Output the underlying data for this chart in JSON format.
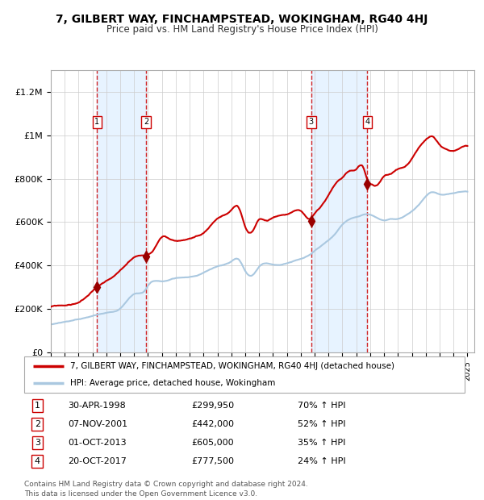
{
  "title": "7, GILBERT WAY, FINCHAMPSTEAD, WOKINGHAM, RG40 4HJ",
  "subtitle": "Price paid vs. HM Land Registry's House Price Index (HPI)",
  "xlim": [
    1995.0,
    2025.5
  ],
  "ylim": [
    0,
    1300000
  ],
  "ytick_labels": [
    "£0",
    "£200K",
    "£400K",
    "£600K",
    "£800K",
    "£1M",
    "£1.2M"
  ],
  "sale_color": "#cc0000",
  "hpi_color": "#aac8e0",
  "marker_color": "#990000",
  "vline_color": "#cc0000",
  "shade_color": "#ddeeff",
  "transactions": [
    {
      "num": 1,
      "date_str": "30-APR-1998",
      "price": 299950,
      "hpi_pct": "70% ↑ HPI",
      "year": 1998.33
    },
    {
      "num": 2,
      "date_str": "07-NOV-2001",
      "price": 442000,
      "hpi_pct": "52% ↑ HPI",
      "year": 2001.85
    },
    {
      "num": 3,
      "date_str": "01-OCT-2013",
      "price": 605000,
      "hpi_pct": "35% ↑ HPI",
      "year": 2013.75
    },
    {
      "num": 4,
      "date_str": "20-OCT-2017",
      "price": 777500,
      "hpi_pct": "24% ↑ HPI",
      "year": 2017.8
    }
  ],
  "key_points_prop": [
    [
      1995.0,
      210000
    ],
    [
      1996.5,
      220000
    ],
    [
      1997.5,
      250000
    ],
    [
      1998.33,
      299950
    ],
    [
      1999.5,
      340000
    ],
    [
      2000.5,
      400000
    ],
    [
      2001.0,
      430000
    ],
    [
      2001.85,
      442000
    ],
    [
      2002.5,
      480000
    ],
    [
      2003.0,
      530000
    ],
    [
      2003.5,
      520000
    ],
    [
      2004.0,
      510000
    ],
    [
      2005.0,
      520000
    ],
    [
      2006.0,
      540000
    ],
    [
      2007.0,
      610000
    ],
    [
      2008.0,
      645000
    ],
    [
      2008.5,
      660000
    ],
    [
      2009.0,
      570000
    ],
    [
      2009.5,
      545000
    ],
    [
      2010.0,
      600000
    ],
    [
      2010.5,
      595000
    ],
    [
      2011.0,
      610000
    ],
    [
      2011.5,
      620000
    ],
    [
      2012.0,
      625000
    ],
    [
      2013.0,
      640000
    ],
    [
      2013.75,
      605000
    ],
    [
      2014.0,
      625000
    ],
    [
      2014.5,
      660000
    ],
    [
      2015.0,
      710000
    ],
    [
      2015.5,
      760000
    ],
    [
      2016.0,
      790000
    ],
    [
      2016.5,
      820000
    ],
    [
      2017.0,
      830000
    ],
    [
      2017.5,
      840000
    ],
    [
      2017.8,
      777500
    ],
    [
      2018.0,
      760000
    ],
    [
      2018.5,
      750000
    ],
    [
      2019.0,
      790000
    ],
    [
      2019.5,
      800000
    ],
    [
      2020.0,
      820000
    ],
    [
      2020.5,
      830000
    ],
    [
      2021.0,
      870000
    ],
    [
      2021.5,
      920000
    ],
    [
      2022.0,
      960000
    ],
    [
      2022.5,
      970000
    ],
    [
      2023.0,
      930000
    ],
    [
      2023.5,
      910000
    ],
    [
      2024.0,
      900000
    ],
    [
      2024.5,
      910000
    ],
    [
      2025.0,
      920000
    ]
  ],
  "key_points_hpi": [
    [
      1995.0,
      130000
    ],
    [
      1996.0,
      140000
    ],
    [
      1997.0,
      153000
    ],
    [
      1998.0,
      168000
    ],
    [
      1998.33,
      175000
    ],
    [
      1999.0,
      185000
    ],
    [
      2000.0,
      205000
    ],
    [
      2001.0,
      270000
    ],
    [
      2001.85,
      290000
    ],
    [
      2002.0,
      305000
    ],
    [
      2003.0,
      325000
    ],
    [
      2004.0,
      340000
    ],
    [
      2005.0,
      345000
    ],
    [
      2006.0,
      365000
    ],
    [
      2007.0,
      395000
    ],
    [
      2008.0,
      415000
    ],
    [
      2008.5,
      425000
    ],
    [
      2009.0,
      370000
    ],
    [
      2009.5,
      350000
    ],
    [
      2010.0,
      390000
    ],
    [
      2011.0,
      400000
    ],
    [
      2012.0,
      405000
    ],
    [
      2013.0,
      425000
    ],
    [
      2013.75,
      447000
    ],
    [
      2014.0,
      460000
    ],
    [
      2015.0,
      510000
    ],
    [
      2015.5,
      540000
    ],
    [
      2016.0,
      580000
    ],
    [
      2016.5,
      605000
    ],
    [
      2017.0,
      615000
    ],
    [
      2017.8,
      628000
    ],
    [
      2018.0,
      625000
    ],
    [
      2018.5,
      610000
    ],
    [
      2019.0,
      600000
    ],
    [
      2019.5,
      605000
    ],
    [
      2020.0,
      605000
    ],
    [
      2020.5,
      620000
    ],
    [
      2021.0,
      640000
    ],
    [
      2021.5,
      670000
    ],
    [
      2022.0,
      710000
    ],
    [
      2022.5,
      730000
    ],
    [
      2023.0,
      720000
    ],
    [
      2023.5,
      720000
    ],
    [
      2024.0,
      725000
    ],
    [
      2024.5,
      730000
    ],
    [
      2025.0,
      730000
    ]
  ],
  "legend_line1": "7, GILBERT WAY, FINCHAMPSTEAD, WOKINGHAM, RG40 4HJ (detached house)",
  "legend_line2": "HPI: Average price, detached house, Wokingham",
  "footer1": "Contains HM Land Registry data © Crown copyright and database right 2024.",
  "footer2": "This data is licensed under the Open Government Licence v3.0.",
  "background_color": "#ffffff",
  "plot_bg_color": "#ffffff",
  "grid_color": "#cccccc"
}
